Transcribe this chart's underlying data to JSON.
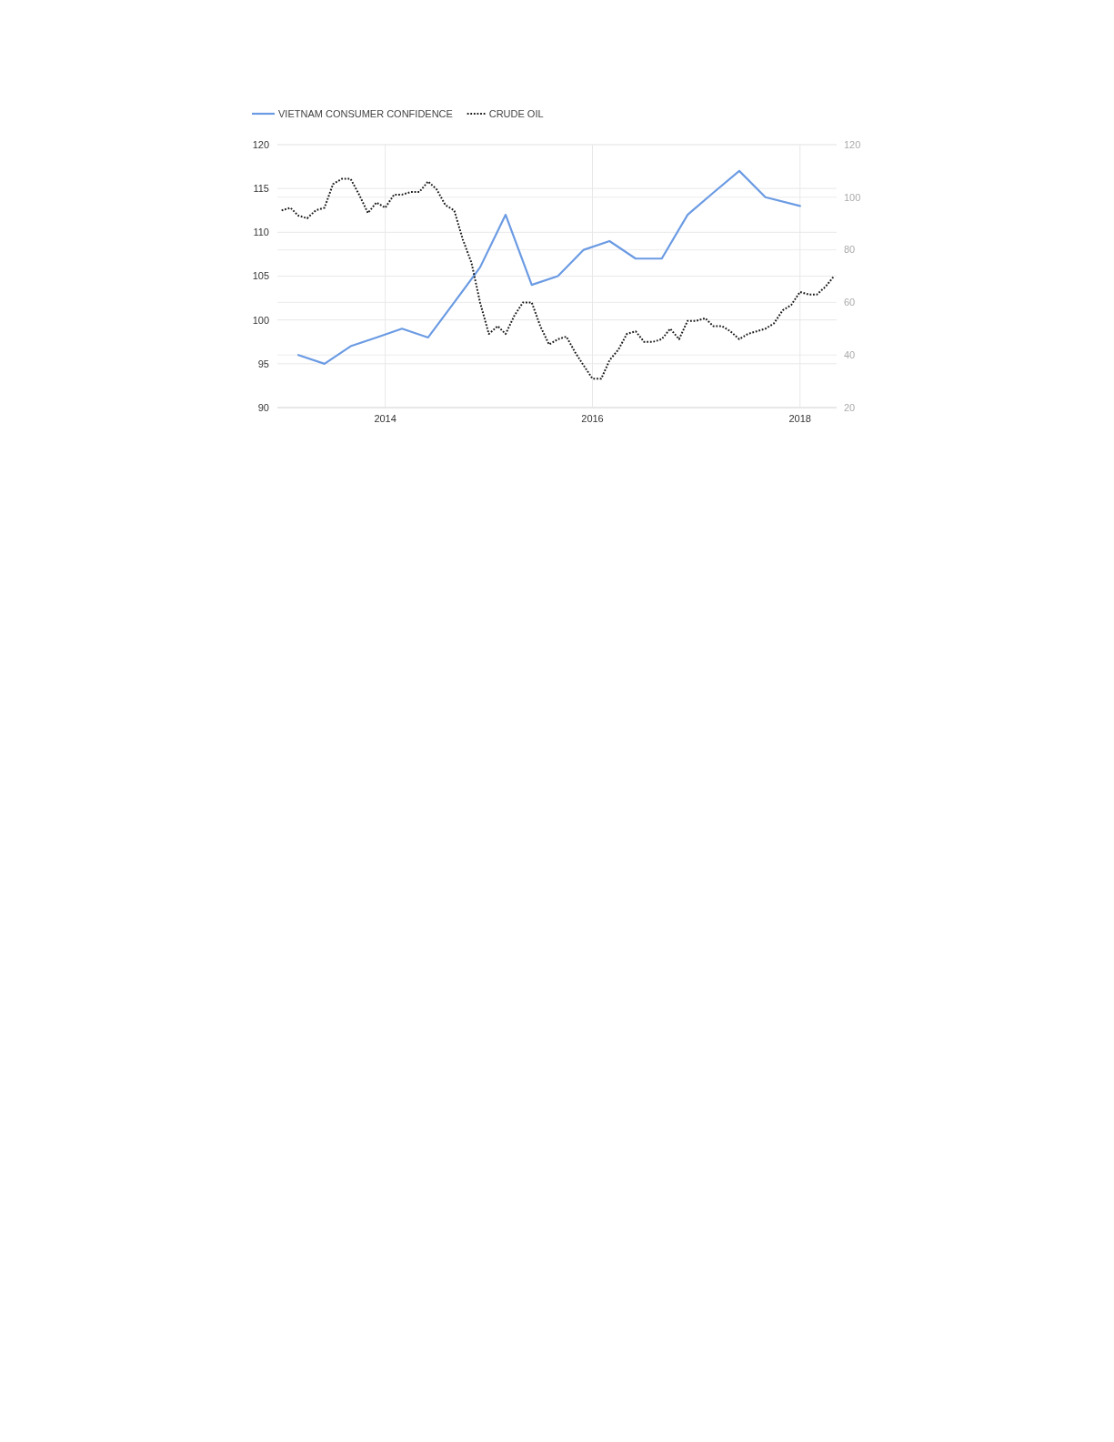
{
  "chart_data": {
    "type": "line",
    "legend": "top left",
    "grid": true,
    "xlim": [
      "2012-12-17",
      "2018-05-10"
    ],
    "xticks": [
      "2014",
      "2016",
      "2018"
    ],
    "ylim": [
      90,
      120
    ],
    "yticks": [
      90,
      95,
      100,
      105,
      110,
      115,
      120
    ],
    "y2lim": [
      20,
      120
    ],
    "y2ticks": [
      20,
      40,
      60,
      80,
      100,
      120
    ],
    "series": [
      {
        "name": "VIETNAM CONSUMER CONFIDENCE",
        "color": "#6b9be3",
        "x": [
          "2013-03",
          "2013-06",
          "2013-09",
          "2013-12",
          "2014-03",
          "2014-06",
          "2014-09",
          "2014-12",
          "2015-03",
          "2015-06",
          "2015-09",
          "2015-12",
          "2016-03",
          "2016-06",
          "2016-09",
          "2016-12",
          "2017-03",
          "2017-06",
          "2017-09",
          "2018-01"
        ],
        "values": [
          96,
          95,
          97,
          98,
          99,
          98,
          102,
          106,
          112,
          104,
          105,
          108,
          109,
          107,
          107,
          112,
          114.5,
          117,
          114,
          113
        ]
      },
      {
        "name": "CRUDE OIL",
        "color": "#1a1a1a",
        "axis": "y2",
        "line_style": "dotted",
        "x": [
          "2013-01",
          "2013-02",
          "2013-03",
          "2013-04",
          "2013-05",
          "2013-06",
          "2013-07",
          "2013-08",
          "2013-09",
          "2013-10",
          "2013-11",
          "2013-12",
          "2014-01",
          "2014-02",
          "2014-03",
          "2014-04",
          "2014-05",
          "2014-06",
          "2014-07",
          "2014-08",
          "2014-09",
          "2014-10",
          "2014-11",
          "2014-12",
          "2015-01",
          "2015-02",
          "2015-03",
          "2015-04",
          "2015-05",
          "2015-06",
          "2015-07",
          "2015-08",
          "2015-09",
          "2015-10",
          "2015-11",
          "2015-12",
          "2016-01",
          "2016-02",
          "2016-03",
          "2016-04",
          "2016-05",
          "2016-06",
          "2016-07",
          "2016-08",
          "2016-09",
          "2016-10",
          "2016-11",
          "2016-12",
          "2017-01",
          "2017-02",
          "2017-03",
          "2017-04",
          "2017-05",
          "2017-06",
          "2017-07",
          "2017-08",
          "2017-09",
          "2017-10",
          "2017-11",
          "2017-12",
          "2018-01",
          "2018-02",
          "2018-03",
          "2018-04",
          "2018-05"
        ],
        "values": [
          95,
          96,
          93,
          92,
          95,
          96,
          105,
          107,
          107,
          101,
          94,
          98,
          96,
          101,
          101,
          102,
          102,
          106,
          103,
          97,
          95,
          84,
          75,
          60,
          48,
          51,
          48,
          55,
          60,
          60,
          51,
          44,
          46,
          47,
          41,
          36,
          31,
          31,
          38,
          42,
          48,
          49,
          45,
          45,
          46,
          50,
          46,
          53,
          53,
          54,
          51,
          51,
          49,
          46,
          48,
          49,
          50,
          52,
          57,
          59,
          64,
          63,
          63,
          66,
          70
        ]
      }
    ]
  }
}
